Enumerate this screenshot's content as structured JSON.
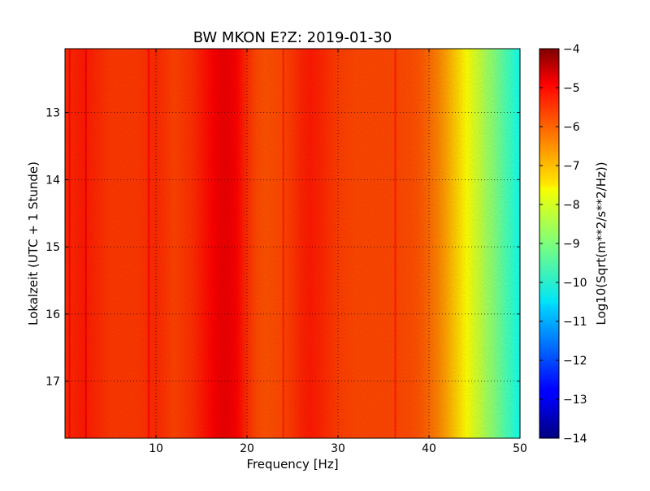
{
  "chart_data": {
    "type": "heatmap",
    "title": "BW MKON E?Z: 2019-01-30",
    "xlabel": "Frequency [Hz]",
    "ylabel": "Lokalzeit (UTC + 1 Stunde)",
    "xlim": [
      0,
      50
    ],
    "ylim": [
      12.05,
      17.85
    ],
    "y_inverted": true,
    "x_ticks": [
      10,
      20,
      30,
      40,
      50
    ],
    "x_tick_labels": [
      "10",
      "20",
      "30",
      "40",
      "50"
    ],
    "y_ticks": [
      13,
      14,
      15,
      16,
      17
    ],
    "y_tick_labels": [
      "13",
      "14",
      "15",
      "16",
      "17"
    ],
    "grid": true,
    "colorbar": {
      "label": "Log10(Sqrt(m**2/s**2/Hz))",
      "range": [
        -14,
        -4
      ],
      "ticks": [
        -4,
        -5,
        -6,
        -7,
        -8,
        -9,
        -10,
        -11,
        -12,
        -13,
        -14
      ],
      "tick_labels": [
        "−4",
        "−5",
        "−6",
        "−7",
        "−8",
        "−9",
        "−10",
        "−11",
        "−12",
        "−13",
        "−14"
      ],
      "colormap": "jet"
    },
    "frequency_profile": {
      "frequency_hz": [
        0,
        2,
        5,
        8,
        10,
        12,
        14,
        16,
        17,
        18,
        19,
        20,
        21,
        22,
        24,
        26,
        27,
        28,
        30,
        32,
        34,
        36,
        38,
        39,
        40,
        41,
        42,
        43,
        44,
        45,
        46,
        47,
        48,
        49,
        50
      ],
      "log10_amplitude": [
        -5.7,
        -5.5,
        -5.8,
        -5.8,
        -5.65,
        -5.9,
        -5.7,
        -5.3,
        -5.1,
        -5.1,
        -5.3,
        -5.7,
        -5.95,
        -6.05,
        -5.95,
        -5.6,
        -5.5,
        -5.6,
        -5.85,
        -5.95,
        -5.95,
        -5.95,
        -6.0,
        -6.1,
        -6.3,
        -6.55,
        -6.9,
        -7.3,
        -7.7,
        -8.1,
        -8.5,
        -8.9,
        -9.3,
        -9.7,
        -10.1
      ]
    },
    "line_features_hz": [
      0.5,
      2.3,
      9.2,
      36.3,
      24.0
    ]
  }
}
